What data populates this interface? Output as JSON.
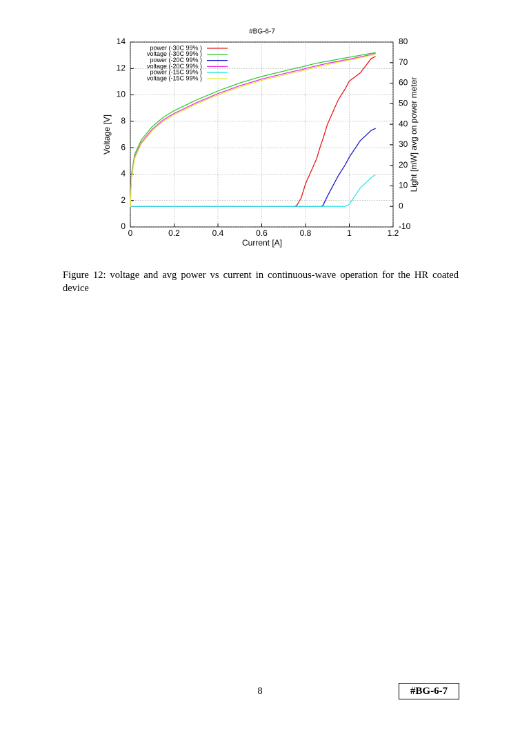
{
  "chart_data": {
    "type": "line",
    "title": "#BG-6-7",
    "x_label": "Current [A]",
    "y_label": "Voltage [V]",
    "y2_label": "Light [mW] avg on power meter",
    "x": [
      0,
      0.005,
      0.02,
      0.05,
      0.1,
      0.15,
      0.2,
      0.3,
      0.4,
      0.5,
      0.6,
      0.7,
      0.75,
      0.76,
      0.78,
      0.8,
      0.85,
      0.87,
      0.88,
      0.9,
      0.95,
      0.98,
      1.0,
      1.05,
      1.1,
      1.12
    ],
    "series": [
      {
        "name": "power (-30C 99% )",
        "color": "#e41a1c",
        "axis": "y2",
        "values": [
          0,
          0,
          0,
          0,
          0,
          0,
          0,
          0,
          0,
          0,
          0,
          0,
          0,
          0.5,
          4,
          11,
          23,
          30,
          33,
          40,
          52,
          57,
          61,
          65,
          72,
          73
        ]
      },
      {
        "name": "voltage (-30C 99% )",
        "color": "#33cc33",
        "values": [
          1.7,
          4.0,
          5.5,
          6.6,
          7.6,
          8.3,
          8.8,
          9.6,
          10.3,
          10.9,
          11.4,
          11.8,
          12.0,
          12.05,
          12.1,
          12.2,
          12.4,
          12.45,
          12.5,
          12.55,
          12.7,
          12.8,
          12.85,
          13.0,
          13.15,
          13.2
        ]
      },
      {
        "name": "power (-20C 99% )",
        "color": "#1a1acc",
        "axis": "y2",
        "values": [
          0,
          0,
          0,
          0,
          0,
          0,
          0,
          0,
          0,
          0,
          0,
          0,
          0,
          0,
          0,
          0,
          0,
          0,
          0.5,
          5,
          15,
          20,
          24,
          32,
          37,
          38
        ]
      },
      {
        "name": "voltage (-20C 99% )",
        "color": "#e633e6",
        "values": [
          1.6,
          3.8,
          5.3,
          6.4,
          7.4,
          8.1,
          8.6,
          9.4,
          10.1,
          10.7,
          11.2,
          11.6,
          11.8,
          11.85,
          11.9,
          12.0,
          12.2,
          12.28,
          12.32,
          12.4,
          12.55,
          12.65,
          12.7,
          12.88,
          13.05,
          13.15
        ]
      },
      {
        "name": "power (-15C 99% )",
        "color": "#33e6e6",
        "axis": "y2",
        "values": [
          0,
          0,
          0,
          0,
          0,
          0,
          0,
          0,
          0,
          0,
          0,
          0,
          0,
          0,
          0,
          0,
          0,
          0,
          0,
          0,
          0,
          0,
          1,
          9,
          14,
          15.5
        ]
      },
      {
        "name": "voltage (-15C 99% )",
        "color": "#e6e633",
        "values": [
          1.5,
          3.7,
          5.2,
          6.3,
          7.3,
          8.0,
          8.5,
          9.3,
          10.0,
          10.6,
          11.1,
          11.5,
          11.7,
          11.75,
          11.8,
          11.9,
          12.1,
          12.18,
          12.22,
          12.3,
          12.47,
          12.57,
          12.63,
          12.82,
          13.0,
          13.1
        ]
      }
    ],
    "xlim": [
      0,
      1.2
    ],
    "xticks": [
      0,
      0.2,
      0.4,
      0.6,
      0.8,
      1,
      1.2
    ],
    "ylim": [
      0,
      14
    ],
    "yticks": [
      0,
      2,
      4,
      6,
      8,
      10,
      12,
      14
    ],
    "y2lim": [
      -10,
      80
    ],
    "y2ticks": [
      -10,
      0,
      10,
      20,
      30,
      40,
      50,
      60,
      70,
      80
    ],
    "grid": true,
    "legend": "top-left"
  },
  "caption": "Figure 12:  voltage and avg power vs current in continuous-wave operation for the HR coated device",
  "page_number": "8",
  "footer_tag": "#BG-6-7"
}
